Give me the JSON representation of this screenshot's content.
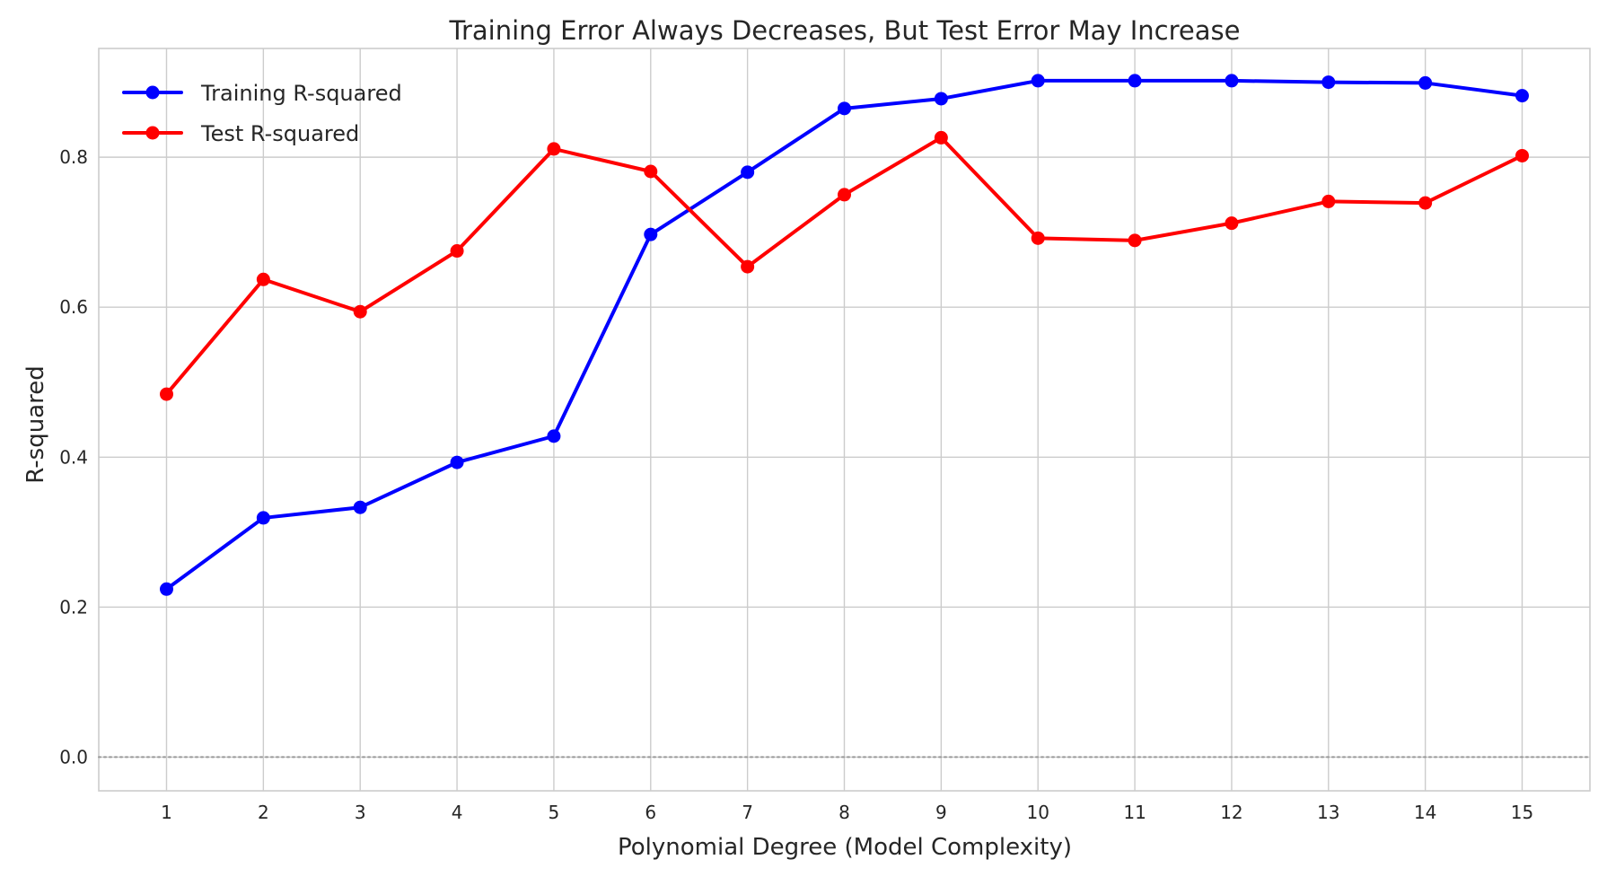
{
  "chart_data": {
    "type": "line",
    "title": "Training Error Always Decreases, But Test Error May Increase",
    "xlabel": "Polynomial Degree (Model Complexity)",
    "ylabel": "R-squared",
    "x": [
      1,
      2,
      3,
      4,
      5,
      6,
      7,
      8,
      9,
      10,
      11,
      12,
      13,
      14,
      15
    ],
    "xticks": [
      "1",
      "2",
      "3",
      "4",
      "5",
      "6",
      "7",
      "8",
      "9",
      "10",
      "11",
      "12",
      "13",
      "14",
      "15"
    ],
    "yticks": [
      "0.0",
      "0.2",
      "0.4",
      "0.6",
      "0.8"
    ],
    "ytick_values": [
      0.0,
      0.2,
      0.4,
      0.6,
      0.8
    ],
    "xlim": [
      0.3,
      15.7
    ],
    "ylim": [
      -0.045,
      0.945
    ],
    "grid": true,
    "legend_position": "top-left",
    "reference_line": {
      "y": 0.0,
      "style": "dotted",
      "color": "#999999"
    },
    "series": [
      {
        "name": "Training R-squared",
        "color": "#0000ff",
        "marker": "circle",
        "values": [
          0.224,
          0.319,
          0.333,
          0.393,
          0.428,
          0.697,
          0.78,
          0.865,
          0.878,
          0.902,
          0.902,
          0.902,
          0.9,
          0.899,
          0.882
        ]
      },
      {
        "name": "Test R-squared",
        "color": "#ff0000",
        "marker": "circle",
        "values": [
          0.484,
          0.637,
          0.594,
          0.675,
          0.811,
          0.781,
          0.654,
          0.75,
          0.826,
          0.692,
          0.689,
          0.712,
          0.741,
          0.739,
          0.802
        ]
      }
    ]
  }
}
